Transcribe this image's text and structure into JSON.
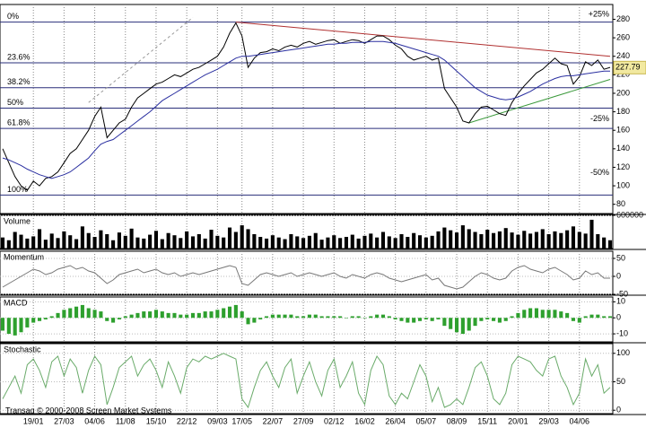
{
  "footer": "Transaq © 2000-2008 Screen Market Systems",
  "chart_data": [
    {
      "type": "line",
      "xlim": [
        0,
        99
      ],
      "ylim": [
        70,
        296
      ],
      "yticks": [
        80,
        100,
        120,
        140,
        160,
        180,
        200,
        220,
        240,
        260,
        280
      ],
      "xticks": [
        {
          "value": 5,
          "label": "19/01"
        },
        {
          "value": 10,
          "label": "27/03"
        },
        {
          "value": 15,
          "label": "04/06"
        },
        {
          "value": 20,
          "label": "11/08"
        },
        {
          "value": 25,
          "label": "15/10"
        },
        {
          "value": 30,
          "label": "22/12"
        },
        {
          "value": 35,
          "label": "09/03"
        },
        {
          "value": 39,
          "label": "17/05"
        },
        {
          "value": 44,
          "label": "22/07"
        },
        {
          "value": 49,
          "label": "27/09"
        },
        {
          "value": 54,
          "label": "02/12"
        },
        {
          "value": 59,
          "label": "16/02"
        },
        {
          "value": 64,
          "label": "26/04"
        },
        {
          "value": 69,
          "label": "05/07"
        },
        {
          "value": 74,
          "label": "08/09"
        },
        {
          "value": 79,
          "label": "15/11"
        },
        {
          "value": 84,
          "label": "20/01"
        },
        {
          "value": 89,
          "label": "29/03"
        },
        {
          "value": 94,
          "label": "04/06"
        }
      ],
      "grid": true,
      "series": [
        {
          "color": "#000000",
          "values": [
            140,
            125,
            110,
            100,
            95,
            105,
            100,
            108,
            110,
            115,
            125,
            135,
            140,
            150,
            160,
            175,
            185,
            152,
            160,
            168,
            172,
            185,
            195,
            200,
            205,
            210,
            212,
            216,
            220,
            218,
            222,
            226,
            228,
            232,
            236,
            240,
            250,
            265,
            276,
            262,
            228,
            238,
            244,
            245,
            248,
            246,
            250,
            252,
            250,
            254,
            256,
            253,
            255,
            257,
            258,
            254,
            256,
            258,
            257,
            254,
            258,
            262,
            262,
            258,
            252,
            248,
            240,
            236,
            238,
            240,
            236,
            238,
            205,
            195,
            185,
            170,
            168,
            178,
            185,
            186,
            182,
            178,
            176,
            190,
            200,
            208,
            215,
            222,
            226,
            232,
            238,
            232,
            230,
            210,
            218,
            234,
            230,
            236,
            226,
            228
          ]
        },
        {
          "color": "#2a2fa0",
          "values": [
            130,
            128,
            125,
            122,
            118,
            115,
            112,
            110,
            108,
            110,
            112,
            115,
            120,
            125,
            130,
            138,
            145,
            148,
            150,
            155,
            160,
            165,
            170,
            175,
            180,
            186,
            192,
            196,
            200,
            204,
            208,
            212,
            216,
            220,
            223,
            226,
            230,
            234,
            238,
            240,
            240,
            241,
            242,
            243,
            244,
            245,
            246,
            247,
            248,
            249,
            250,
            251,
            252,
            253,
            253,
            254,
            254,
            255,
            255,
            255,
            256,
            256,
            256,
            255,
            254,
            252,
            250,
            248,
            246,
            244,
            242,
            240,
            236,
            230,
            224,
            218,
            212,
            206,
            202,
            198,
            196,
            194,
            193,
            194,
            196,
            199,
            202,
            206,
            210,
            213,
            216,
            218,
            219,
            219,
            220,
            221,
            222,
            223,
            224,
            224
          ]
        }
      ],
      "levels": [
        {
          "value": 277,
          "label": "0%"
        },
        {
          "value": 233,
          "label": "23.6%"
        },
        {
          "value": 206,
          "label": "38.2%"
        },
        {
          "value": 184,
          "label": "50%"
        },
        {
          "value": 162,
          "label": "61.8%"
        },
        {
          "value": 90,
          "label": "100%"
        }
      ],
      "percent_labels": [
        {
          "value": 285,
          "label": "+25%",
          "color": "#2e8b2e"
        },
        {
          "value": 172,
          "label": "-25%",
          "color": "#b03030"
        },
        {
          "value": 114,
          "label": "-50%",
          "color": "#b03030"
        }
      ],
      "trendlines": [
        {
          "color": "#b03030",
          "x": [
            38,
            99
          ],
          "y": [
            277,
            240
          ]
        },
        {
          "color": "#3c9a3c",
          "x": [
            76,
            99
          ],
          "y": [
            168,
            215
          ]
        },
        {
          "color": "#999999",
          "x": [
            14,
            31
          ],
          "y": [
            190,
            282
          ],
          "dashed": true
        }
      ],
      "last_price": 227.79
    },
    {
      "type": "bar",
      "title": "Volume",
      "color": "#000000",
      "ylim": [
        0,
        600000
      ],
      "yticks": [
        600000
      ],
      "values": [
        200000,
        150000,
        300000,
        250000,
        180000,
        220000,
        350000,
        160000,
        270000,
        190000,
        310000,
        240000,
        170000,
        400000,
        280000,
        210000,
        330000,
        260000,
        150000,
        290000,
        230000,
        360000,
        200000,
        180000,
        250000,
        320000,
        170000,
        280000,
        240000,
        190000,
        310000,
        220000,
        260000,
        180000,
        340000,
        230000,
        200000,
        380000,
        300000,
        420000,
        350000,
        260000,
        210000,
        180000,
        240000,
        200000,
        170000,
        260000,
        220000,
        190000,
        230000,
        280000,
        160000,
        200000,
        240000,
        190000,
        210000,
        250000,
        180000,
        230000,
        270000,
        200000,
        300000,
        220000,
        190000,
        260000,
        210000,
        280000,
        240000,
        200000,
        230000,
        310000,
        380000,
        330000,
        290000,
        420000,
        350000,
        300000,
        260000,
        340000,
        280000,
        310000,
        370000,
        290000,
        250000,
        320000,
        270000,
        300000,
        350000,
        260000,
        310000,
        280000,
        330000,
        400000,
        300000,
        270000,
        520000,
        260000,
        200000,
        150000
      ]
    },
    {
      "type": "line",
      "title": "Momentum",
      "color": "#777777",
      "ylim": [
        -50,
        70
      ],
      "yticks": [
        -50,
        0,
        50
      ],
      "values": [
        -30,
        -20,
        -10,
        0,
        10,
        20,
        15,
        5,
        10,
        20,
        25,
        30,
        20,
        25,
        15,
        10,
        -5,
        -20,
        -10,
        5,
        10,
        15,
        20,
        10,
        15,
        20,
        10,
        5,
        10,
        0,
        5,
        10,
        5,
        10,
        15,
        20,
        25,
        30,
        25,
        -20,
        -25,
        -10,
        5,
        10,
        5,
        0,
        5,
        10,
        0,
        5,
        10,
        5,
        0,
        5,
        10,
        0,
        -5,
        5,
        0,
        -5,
        5,
        10,
        5,
        -5,
        -10,
        -15,
        -10,
        -5,
        0,
        5,
        -10,
        -5,
        -25,
        -30,
        -35,
        -30,
        -15,
        0,
        10,
        5,
        -5,
        -10,
        -5,
        15,
        25,
        30,
        20,
        15,
        10,
        20,
        25,
        15,
        5,
        -10,
        -5,
        15,
        5,
        10,
        -5,
        -5
      ]
    },
    {
      "type": "bar",
      "title": "MACD",
      "color": "#2ea02e",
      "ylim": [
        -15,
        13
      ],
      "yticks": [
        -10,
        0,
        10
      ],
      "values": [
        -8,
        -10,
        -11,
        -9,
        -6,
        -3,
        -2,
        -1,
        1,
        3,
        5,
        6,
        7,
        8,
        6,
        5,
        4,
        -2,
        -3,
        -1,
        1,
        2,
        3,
        4,
        4,
        5,
        4,
        3,
        3,
        2,
        2,
        3,
        3,
        4,
        4,
        5,
        6,
        7,
        8,
        4,
        -4,
        -3,
        -1,
        1,
        2,
        2,
        2,
        2,
        1,
        1,
        2,
        2,
        1,
        1,
        1,
        1,
        0,
        1,
        1,
        0,
        1,
        2,
        2,
        1,
        -1,
        -2,
        -3,
        -3,
        -2,
        -1,
        -2,
        -1,
        -5,
        -7,
        -9,
        -10,
        -8,
        -5,
        -2,
        -1,
        -2,
        -3,
        -2,
        1,
        3,
        5,
        6,
        6,
        5,
        5,
        5,
        4,
        3,
        -2,
        -3,
        1,
        2,
        2,
        1,
        1
      ]
    },
    {
      "type": "line",
      "title": "Stochastic",
      "color": "#6aab6a",
      "ylim": [
        -6,
        117
      ],
      "yticks": [
        0,
        50,
        100
      ],
      "values": [
        20,
        40,
        60,
        30,
        80,
        90,
        70,
        40,
        85,
        95,
        60,
        90,
        75,
        30,
        70,
        95,
        80,
        10,
        40,
        75,
        85,
        95,
        60,
        80,
        90,
        70,
        40,
        85,
        60,
        30,
        75,
        90,
        85,
        95,
        90,
        95,
        100,
        95,
        90,
        20,
        5,
        40,
        70,
        85,
        60,
        40,
        75,
        90,
        30,
        60,
        85,
        50,
        25,
        70,
        90,
        40,
        60,
        85,
        30,
        10,
        70,
        95,
        80,
        25,
        10,
        30,
        20,
        50,
        80,
        60,
        15,
        40,
        5,
        10,
        20,
        10,
        40,
        75,
        85,
        60,
        20,
        10,
        30,
        80,
        95,
        90,
        85,
        70,
        60,
        90,
        95,
        60,
        40,
        10,
        30,
        90,
        60,
        80,
        30,
        40
      ]
    }
  ]
}
